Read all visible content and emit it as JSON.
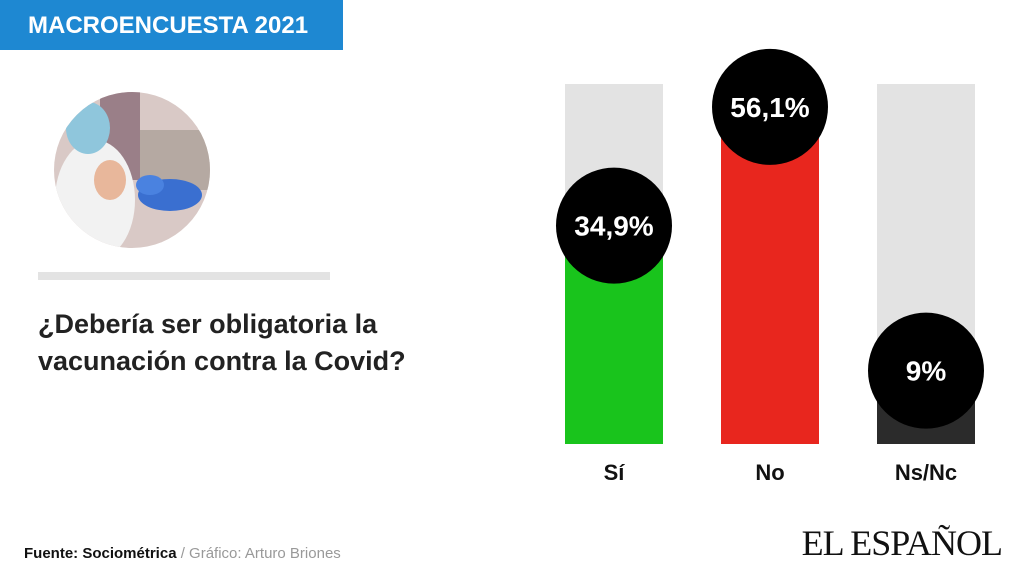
{
  "header": "MACROENCUESTA 2021",
  "source": "Fuente: Sociométrica",
  "credit": "/ Gráfico: Arturo Briones",
  "logo": "EL ESPAÑOL",
  "chart_data": {
    "type": "bar",
    "title": "¿Debería ser obligatoria la vacunación contra la Covid?",
    "categories": [
      "Sí",
      "No",
      "Ns/Nc"
    ],
    "values": [
      34.9,
      56.1,
      9
    ],
    "value_labels": [
      "34,9%",
      "56,1%",
      "9%"
    ],
    "colors": [
      "#19c41c",
      "#e8261e",
      "#2b2b2b"
    ],
    "ylim": [
      0,
      64.3
    ]
  }
}
